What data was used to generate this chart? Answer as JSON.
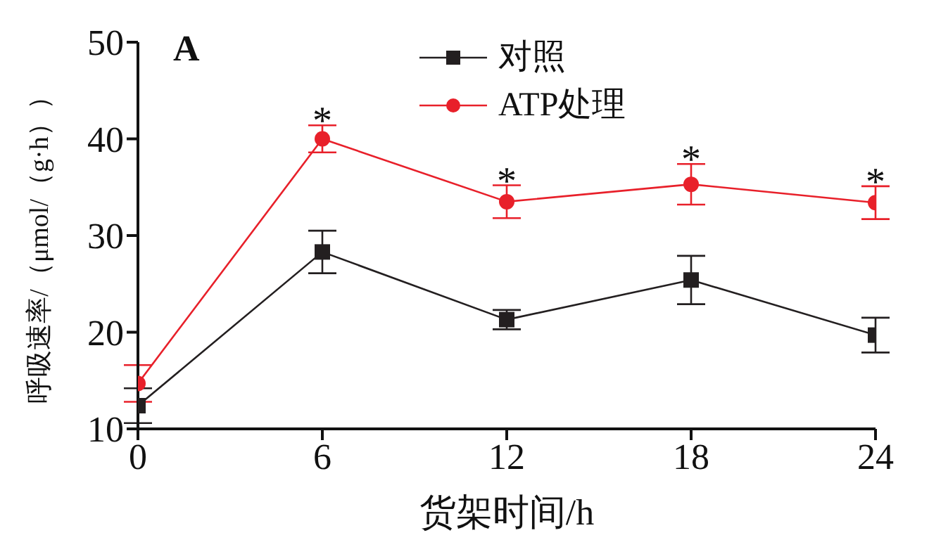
{
  "chart_data": {
    "type": "line",
    "xlabel": "货架时间/h",
    "ylabel": "呼吸速率/（μmol/（g·h））",
    "x": [
      0,
      6,
      12,
      18,
      24
    ],
    "xlim": [
      0,
      24
    ],
    "xticks": [
      0,
      6,
      12,
      18,
      24
    ],
    "ylim": [
      10,
      50
    ],
    "yticks": [
      10,
      20,
      30,
      40,
      50
    ],
    "legend": "top",
    "line_style": "solid",
    "series": [
      {
        "name": "对照",
        "color": "#231f20",
        "marker": "square",
        "values": [
          12.4,
          28.3,
          21.3,
          25.4,
          19.7
        ],
        "errors": [
          1.8,
          2.2,
          1.0,
          2.5,
          1.8
        ]
      },
      {
        "name": "ATP处理",
        "color": "#e8202a",
        "marker": "circle",
        "values": [
          14.7,
          40.0,
          33.5,
          35.3,
          33.4
        ],
        "errors": [
          1.9,
          1.4,
          1.7,
          2.1,
          1.7
        ]
      }
    ],
    "annotations": [
      "A",
      {
        "text": "*",
        "x": 6,
        "y": 41.4
      },
      {
        "text": "*",
        "x": 12,
        "y": 35.2
      },
      {
        "text": "*",
        "x": 18,
        "y": 37.4
      },
      {
        "text": "*",
        "x": 24,
        "y": 35.1
      }
    ]
  }
}
